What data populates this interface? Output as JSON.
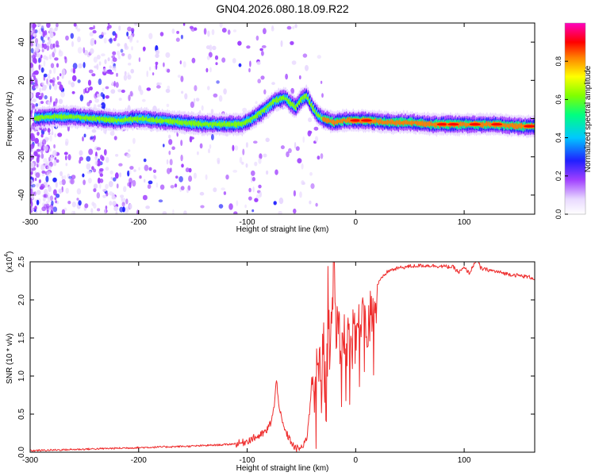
{
  "title": "GN04.2026.080.18.09.R22",
  "colors": {
    "snr_line": "#ee2b2b",
    "spectrogram_scale": [
      "#ffffff",
      "#e8d8ff",
      "#a040ff",
      "#2020ff",
      "#00c8ff",
      "#00ff80",
      "#80ff00",
      "#ffff00",
      "#ff8000",
      "#ff0000",
      "#ff00c0"
    ]
  },
  "chart_data": [
    {
      "type": "heatmap",
      "title": "GN04.2026.080.18.09.R22",
      "xlabel": "Height of straight line (km)",
      "ylabel": "Frequency (Hz)",
      "xlim": [
        -300,
        165
      ],
      "ylim": [
        -50,
        50
      ],
      "x_ticks": [
        "-300",
        "-200",
        "-100",
        "0",
        "100"
      ],
      "y_ticks": [
        "-40",
        "-20",
        "0",
        "20",
        "40"
      ],
      "colorbar": {
        "label": "Normalized spectral amplitude",
        "range": [
          0,
          1
        ],
        "ticks": [
          "0.0",
          "0.2",
          "0.4",
          "0.6",
          "0.8"
        ]
      },
      "ridge": {
        "x": [
          -300,
          -280,
          -260,
          -240,
          -220,
          -200,
          -180,
          -160,
          -140,
          -120,
          -105,
          -95,
          -85,
          -75,
          -65,
          -60,
          -55,
          -50,
          -45,
          -40,
          -35,
          -30,
          -20,
          -10,
          0,
          10,
          30,
          50,
          70,
          90,
          110,
          130,
          150,
          165
        ],
        "y": [
          0,
          1,
          1,
          0,
          -1,
          0,
          -1,
          -2,
          -3,
          -3,
          -3,
          0,
          4,
          9,
          11,
          8,
          6,
          10,
          12,
          6,
          2,
          0,
          -2,
          -1,
          -1,
          -1,
          -2,
          -2,
          -3,
          -3,
          -3,
          -3,
          -4,
          -4
        ],
        "peak_amplitude_x": [
          0,
          10,
          80,
          90,
          110,
          130,
          160
        ]
      }
    },
    {
      "type": "line",
      "title": "",
      "xlabel": "Height of straight line (km)",
      "ylabel": "SNR (10 * v/v)",
      "y_multiplier": "(x10",
      "y_multiplier_exp": "4",
      "y_multiplier_close": ")",
      "xlim": [
        -300,
        165
      ],
      "ylim": [
        0,
        2.5
      ],
      "x_ticks": [
        "-300",
        "-200",
        "-100",
        "0",
        "100"
      ],
      "y_ticks": [
        "0.0",
        "0.5",
        "1.0",
        "1.5",
        "2.0",
        "2.5"
      ],
      "series": [
        {
          "name": "SNR",
          "x": [
            -300,
            -250,
            -200,
            -150,
            -120,
            -105,
            -95,
            -88,
            -82,
            -78,
            -75,
            -73,
            -70,
            -67,
            -64,
            -60,
            -56,
            -52,
            -48,
            -45,
            -42,
            -40,
            -37,
            -35,
            -32,
            -30,
            -28,
            -26,
            -25,
            -23,
            -21,
            -20,
            -18,
            -16,
            -14,
            -12,
            -10,
            -8,
            -5,
            -2,
            0,
            5,
            10,
            15,
            20,
            25,
            30,
            40,
            50,
            60,
            70,
            80,
            90,
            95,
            100,
            105,
            110,
            112,
            115,
            118,
            120,
            130,
            140,
            150,
            160,
            165
          ],
          "y": [
            0.02,
            0.04,
            0.06,
            0.08,
            0.1,
            0.12,
            0.18,
            0.22,
            0.28,
            0.4,
            0.6,
            0.95,
            0.55,
            0.35,
            0.25,
            0.15,
            0.05,
            0.05,
            0.08,
            0.2,
            0.6,
            1.1,
            0.7,
            1.4,
            0.9,
            1.6,
            1.1,
            1.8,
            2.5,
            1.3,
            2.1,
            2.5,
            1.5,
            2.0,
            1.2,
            1.9,
            1.4,
            1.7,
            1.5,
            1.6,
            1.65,
            1.75,
            1.85,
            2.0,
            2.2,
            2.3,
            2.38,
            2.42,
            2.44,
            2.45,
            2.45,
            2.44,
            2.43,
            2.36,
            2.42,
            2.35,
            2.5,
            2.55,
            2.42,
            2.4,
            2.4,
            2.37,
            2.34,
            2.32,
            2.3,
            2.28
          ]
        }
      ]
    }
  ]
}
